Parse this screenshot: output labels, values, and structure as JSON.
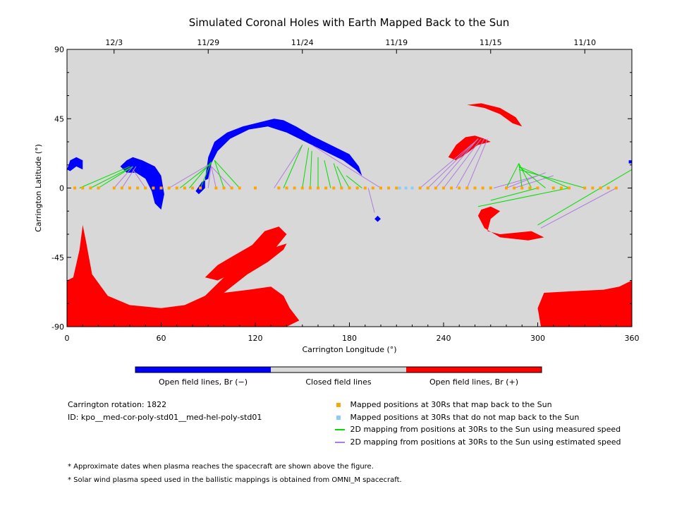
{
  "colors": {
    "open_negative": "#0000ff",
    "closed": "#d8d8d8",
    "open_positive": "#ff0000",
    "mapped_back": "#ffa500",
    "not_mapped": "#87cefa",
    "measured_speed": "#00dd00",
    "estimated_speed": "#b07ae0"
  },
  "chart_data": {
    "type": "scatter",
    "title": "Simulated Coronal Holes with Earth Mapped Back to the Sun",
    "xlabel": "Carrington Longitude (°)",
    "ylabel": "Carrington Latitude (°)",
    "xlim": [
      0,
      360
    ],
    "ylim": [
      -90,
      90
    ],
    "x_ticks": [
      "0",
      "60",
      "120",
      "180",
      "240",
      "300",
      "360"
    ],
    "y_ticks": [
      "90",
      "45",
      "0",
      "-45",
      "-90"
    ],
    "top_axis_dates": [
      {
        "label": "12/3",
        "lon": 30
      },
      {
        "label": "11/29",
        "lon": 90
      },
      {
        "label": "11/24",
        "lon": 150
      },
      {
        "label": "11/19",
        "lon": 210
      },
      {
        "label": "11/15",
        "lon": 270
      },
      {
        "label": "11/10",
        "lon": 330
      }
    ],
    "colorbar_labels": [
      "Open field lines, Br (−)",
      "Closed field lines",
      "Open field lines, Br (+)"
    ],
    "coronal_holes": [
      {
        "polarity": "+",
        "points": [
          [
            0,
            -60
          ],
          [
            4,
            -58
          ],
          [
            8,
            -40
          ],
          [
            10,
            -24
          ],
          [
            12,
            -34
          ],
          [
            16,
            -56
          ],
          [
            26,
            -70
          ],
          [
            40,
            -76
          ],
          [
            60,
            -78
          ],
          [
            75,
            -76
          ],
          [
            88,
            -70
          ],
          [
            98,
            -60
          ],
          [
            108,
            -50
          ],
          [
            122,
            -42
          ],
          [
            140,
            -36
          ],
          [
            138,
            -40
          ],
          [
            128,
            -48
          ],
          [
            115,
            -56
          ],
          [
            105,
            -64
          ],
          [
            100,
            -68
          ],
          [
            116,
            -66
          ],
          [
            130,
            -64
          ],
          [
            138,
            -70
          ],
          [
            142,
            -78
          ],
          [
            148,
            -86
          ],
          [
            140,
            -90
          ],
          [
            0,
            -90
          ]
        ]
      },
      {
        "polarity": "+",
        "points": [
          [
            88,
            -58
          ],
          [
            96,
            -50
          ],
          [
            106,
            -44
          ],
          [
            118,
            -37
          ],
          [
            126,
            -28
          ],
          [
            135,
            -25
          ],
          [
            140,
            -30
          ],
          [
            132,
            -40
          ],
          [
            120,
            -48
          ],
          [
            108,
            -54
          ],
          [
            96,
            -60
          ]
        ]
      },
      {
        "polarity": "+",
        "points": [
          [
            302,
            -90
          ],
          [
            300,
            -78
          ],
          [
            304,
            -68
          ],
          [
            322,
            -67
          ],
          [
            342,
            -66
          ],
          [
            352,
            -64
          ],
          [
            360,
            -60
          ],
          [
            360,
            -90
          ]
        ]
      },
      {
        "polarity": "+",
        "points": [
          [
            255,
            54
          ],
          [
            266,
            52
          ],
          [
            276,
            48
          ],
          [
            284,
            42
          ],
          [
            290,
            40
          ],
          [
            286,
            46
          ],
          [
            276,
            52
          ],
          [
            264,
            55
          ]
        ]
      },
      {
        "polarity": "+",
        "points": [
          [
            243,
            20
          ],
          [
            248,
            28
          ],
          [
            254,
            33
          ],
          [
            260,
            34
          ],
          [
            266,
            32
          ],
          [
            270,
            30
          ],
          [
            262,
            28
          ],
          [
            254,
            22
          ],
          [
            248,
            18
          ]
        ]
      },
      {
        "polarity": "+",
        "points": [
          [
            264,
            -14
          ],
          [
            270,
            -12
          ],
          [
            276,
            -15
          ],
          [
            270,
            -20
          ],
          [
            268,
            -28
          ],
          [
            276,
            -30
          ],
          [
            296,
            -28
          ],
          [
            304,
            -32
          ],
          [
            294,
            -34
          ],
          [
            276,
            -32
          ],
          [
            266,
            -26
          ],
          [
            262,
            -18
          ]
        ]
      },
      {
        "polarity": "-",
        "points": [
          [
            0,
            12
          ],
          [
            2,
            18
          ],
          [
            6,
            20
          ],
          [
            10,
            18
          ],
          [
            10,
            12
          ],
          [
            6,
            14
          ],
          [
            2,
            11
          ]
        ]
      },
      {
        "polarity": "-",
        "points": [
          [
            34,
            14
          ],
          [
            38,
            18
          ],
          [
            42,
            20
          ],
          [
            48,
            18
          ],
          [
            56,
            14
          ],
          [
            60,
            8
          ],
          [
            62,
            -4
          ],
          [
            60,
            -14
          ],
          [
            56,
            -10
          ],
          [
            54,
            -2
          ],
          [
            50,
            6
          ],
          [
            44,
            10
          ],
          [
            38,
            10
          ]
        ]
      },
      {
        "polarity": "-",
        "points": [
          [
            82,
            -2
          ],
          [
            84,
            -4
          ],
          [
            86,
            -2
          ],
          [
            88,
            0
          ],
          [
            88,
            6
          ],
          [
            90,
            20
          ],
          [
            94,
            30
          ],
          [
            102,
            36
          ],
          [
            112,
            40
          ],
          [
            124,
            43
          ],
          [
            132,
            45
          ],
          [
            138,
            44
          ],
          [
            146,
            40
          ],
          [
            156,
            34
          ],
          [
            168,
            28
          ],
          [
            180,
            22
          ],
          [
            186,
            14
          ],
          [
            188,
            8
          ],
          [
            184,
            12
          ],
          [
            176,
            18
          ],
          [
            164,
            24
          ],
          [
            152,
            30
          ],
          [
            140,
            36
          ],
          [
            128,
            40
          ],
          [
            116,
            38
          ],
          [
            104,
            32
          ],
          [
            96,
            24
          ],
          [
            92,
            16
          ],
          [
            90,
            6
          ],
          [
            86,
            4
          ]
        ]
      },
      {
        "polarity": "-",
        "points": [
          [
            196,
            -20
          ],
          [
            198,
            -18
          ],
          [
            200,
            -20
          ],
          [
            198,
            -22
          ]
        ]
      },
      {
        "polarity": "-",
        "points": [
          [
            358,
            16
          ],
          [
            360,
            16
          ],
          [
            360,
            18
          ],
          [
            358,
            18
          ]
        ]
      }
    ],
    "mapped_points_back": [
      [
        5,
        0
      ],
      [
        10,
        0
      ],
      [
        15,
        0
      ],
      [
        20,
        0
      ],
      [
        30,
        0
      ],
      [
        35,
        0
      ],
      [
        40,
        0
      ],
      [
        45,
        0
      ],
      [
        50,
        0
      ],
      [
        55,
        0
      ],
      [
        60,
        0
      ],
      [
        65,
        0
      ],
      [
        70,
        0
      ],
      [
        75,
        0
      ],
      [
        80,
        0
      ],
      [
        85,
        0
      ],
      [
        95,
        0
      ],
      [
        100,
        0
      ],
      [
        105,
        0
      ],
      [
        110,
        0
      ],
      [
        120,
        0
      ],
      [
        135,
        0
      ],
      [
        140,
        0
      ],
      [
        145,
        0
      ],
      [
        150,
        0
      ],
      [
        155,
        0
      ],
      [
        160,
        0
      ],
      [
        165,
        0
      ],
      [
        170,
        0
      ],
      [
        175,
        0
      ],
      [
        180,
        0
      ],
      [
        185,
        0
      ],
      [
        190,
        0
      ],
      [
        195,
        0
      ],
      [
        200,
        0
      ],
      [
        205,
        0
      ],
      [
        210,
        0
      ],
      [
        225,
        0
      ],
      [
        230,
        0
      ],
      [
        235,
        0
      ],
      [
        240,
        0
      ],
      [
        245,
        0
      ],
      [
        250,
        0
      ],
      [
        255,
        0
      ],
      [
        260,
        0
      ],
      [
        265,
        0
      ],
      [
        270,
        0
      ],
      [
        280,
        0
      ],
      [
        285,
        0
      ],
      [
        290,
        0
      ],
      [
        295,
        0
      ],
      [
        300,
        0
      ],
      [
        310,
        0
      ],
      [
        315,
        0
      ],
      [
        320,
        0
      ],
      [
        330,
        0
      ],
      [
        335,
        0
      ],
      [
        340,
        0
      ],
      [
        345,
        0
      ],
      [
        350,
        0
      ]
    ],
    "mapped_points_not_back": [
      [
        212,
        0
      ],
      [
        216,
        0
      ],
      [
        220,
        0
      ]
    ],
    "measured_lines": [
      [
        [
          8,
          0
        ],
        [
          40,
          14
        ]
      ],
      [
        [
          15,
          0
        ],
        [
          42,
          14
        ]
      ],
      [
        [
          20,
          0
        ],
        [
          42,
          14
        ]
      ],
      [
        [
          72,
          0
        ],
        [
          92,
          16
        ]
      ],
      [
        [
          78,
          0
        ],
        [
          92,
          17
        ]
      ],
      [
        [
          85,
          0
        ],
        [
          92,
          17
        ]
      ],
      [
        [
          100,
          0
        ],
        [
          94,
          18
        ]
      ],
      [
        [
          110,
          0
        ],
        [
          94,
          18
        ]
      ],
      [
        [
          138,
          0
        ],
        [
          150,
          28
        ]
      ],
      [
        [
          150,
          0
        ],
        [
          154,
          26
        ]
      ],
      [
        [
          155,
          0
        ],
        [
          156,
          24
        ]
      ],
      [
        [
          160,
          0
        ],
        [
          160,
          20
        ]
      ],
      [
        [
          168,
          0
        ],
        [
          164,
          18
        ]
      ],
      [
        [
          175,
          0
        ],
        [
          170,
          16
        ]
      ],
      [
        [
          180,
          0
        ],
        [
          172,
          14
        ]
      ],
      [
        [
          188,
          0
        ],
        [
          178,
          8
        ]
      ],
      [
        [
          280,
          0
        ],
        [
          288,
          16
        ]
      ],
      [
        [
          290,
          0
        ],
        [
          288,
          16
        ]
      ],
      [
        [
          296,
          0
        ],
        [
          288,
          16
        ]
      ],
      [
        [
          305,
          0
        ],
        [
          288,
          14
        ]
      ],
      [
        [
          320,
          0
        ],
        [
          288,
          14
        ]
      ],
      [
        [
          330,
          0
        ],
        [
          288,
          12
        ]
      ],
      [
        [
          262,
          -12
        ],
        [
          320,
          0
        ]
      ],
      [
        [
          270,
          -8
        ],
        [
          300,
          0
        ]
      ],
      [
        [
          300,
          -24
        ],
        [
          360,
          12
        ]
      ]
    ],
    "estimated_lines": [
      [
        [
          30,
          0
        ],
        [
          42,
          14
        ]
      ],
      [
        [
          35,
          0
        ],
        [
          44,
          14
        ]
      ],
      [
        [
          50,
          0
        ],
        [
          42,
          12
        ]
      ],
      [
        [
          65,
          0
        ],
        [
          90,
          15
        ]
      ],
      [
        [
          90,
          0
        ],
        [
          92,
          16
        ]
      ],
      [
        [
          95,
          0
        ],
        [
          92,
          14
        ]
      ],
      [
        [
          105,
          0
        ],
        [
          92,
          14
        ]
      ],
      [
        [
          132,
          0
        ],
        [
          150,
          28
        ]
      ],
      [
        [
          192,
          0
        ],
        [
          196,
          -16
        ]
      ],
      [
        [
          200,
          0
        ],
        [
          156,
          28
        ]
      ],
      [
        [
          225,
          0
        ],
        [
          260,
          30
        ]
      ],
      [
        [
          230,
          0
        ],
        [
          262,
          32
        ]
      ],
      [
        [
          235,
          0
        ],
        [
          262,
          32
        ]
      ],
      [
        [
          240,
          0
        ],
        [
          264,
          32
        ]
      ],
      [
        [
          248,
          0
        ],
        [
          266,
          32
        ]
      ],
      [
        [
          255,
          0
        ],
        [
          268,
          32
        ]
      ],
      [
        [
          272,
          0
        ],
        [
          300,
          8
        ]
      ],
      [
        [
          280,
          0
        ],
        [
          305,
          10
        ]
      ],
      [
        [
          285,
          0
        ],
        [
          310,
          8
        ]
      ],
      [
        [
          302,
          -26
        ],
        [
          350,
          0
        ]
      ]
    ]
  },
  "info": {
    "rotation": "Carrington rotation: 1822",
    "id": "ID: kpo__med-cor-poly-std01__med-hel-poly-std01"
  },
  "legend": {
    "mapped_back": "Mapped positions at 30Rs that map back to the Sun",
    "not_mapped": "Mapped positions at 30Rs that do not map back to the Sun",
    "measured": "2D mapping from positions at 30Rs to the Sun using measured speed",
    "estimated": "2D mapping from positions at 30Rs to the Sun using estimated speed"
  },
  "notes": {
    "note1": "* Approximate dates when plasma reaches the spacecraft are shown above the figure.",
    "note2": "* Solar wind plasma speed used in the ballistic mappings is obtained from OMNI_M spacecraft."
  }
}
